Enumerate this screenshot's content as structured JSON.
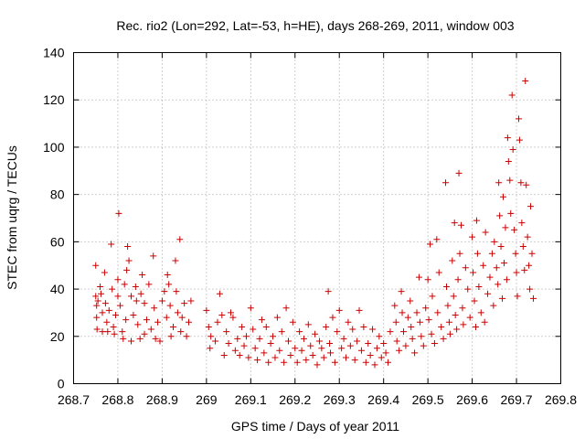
{
  "chart_data": {
    "type": "scatter",
    "title": "Rec. rio2 (Lon=292, Lat=-53, h=HE), days 268-269, 2011, window 003",
    "xlabel": "GPS time / Days of year 2011",
    "ylabel": "STEC from uqrg / TECUs",
    "xlim": [
      268.7,
      269.8
    ],
    "ylim": [
      0,
      140
    ],
    "xticks": [
      "268.7",
      "268.8",
      "268.9",
      "269",
      "269.1",
      "269.2",
      "269.3",
      "269.4",
      "269.5",
      "269.6",
      "269.7",
      "269.8"
    ],
    "yticks": [
      "0",
      "20",
      "40",
      "60",
      "80",
      "100",
      "120",
      "140"
    ],
    "grid": true,
    "legend": "none",
    "marker": "plus",
    "color": "#cc0000",
    "series": [
      {
        "points": [
          [
            268.75,
            50
          ],
          [
            268.75,
            37
          ],
          [
            268.752,
            33
          ],
          [
            268.752,
            28
          ],
          [
            268.753,
            23
          ],
          [
            268.755,
            35
          ],
          [
            268.76,
            41
          ],
          [
            268.762,
            38
          ],
          [
            268.765,
            30
          ],
          [
            268.765,
            22
          ],
          [
            268.77,
            47
          ],
          [
            268.772,
            34
          ],
          [
            268.775,
            26
          ],
          [
            268.777,
            22
          ],
          [
            268.78,
            31
          ],
          [
            268.785,
            59
          ],
          [
            268.787,
            40
          ],
          [
            268.79,
            24
          ],
          [
            268.792,
            21
          ],
          [
            268.795,
            29
          ],
          [
            268.8,
            44
          ],
          [
            268.8,
            37
          ],
          [
            268.802,
            72
          ],
          [
            268.805,
            33
          ],
          [
            268.81,
            22
          ],
          [
            268.812,
            19
          ],
          [
            268.815,
            42
          ],
          [
            268.818,
            27
          ],
          [
            268.82,
            48
          ],
          [
            268.822,
            58
          ],
          [
            268.825,
            52
          ],
          [
            268.83,
            37
          ],
          [
            268.83,
            18
          ],
          [
            268.835,
            29
          ],
          [
            268.84,
            41
          ],
          [
            268.842,
            35
          ],
          [
            268.845,
            25
          ],
          [
            268.85,
            19
          ],
          [
            268.852,
            38
          ],
          [
            268.855,
            46
          ],
          [
            268.86,
            34
          ],
          [
            268.86,
            21
          ],
          [
            268.865,
            27
          ],
          [
            268.87,
            42
          ],
          [
            268.875,
            23
          ],
          [
            268.88,
            54
          ],
          [
            268.882,
            32
          ],
          [
            268.885,
            19
          ],
          [
            268.89,
            26
          ],
          [
            268.895,
            18
          ],
          [
            268.9,
            35
          ],
          [
            268.905,
            39
          ],
          [
            268.91,
            28
          ],
          [
            268.912,
            46
          ],
          [
            268.915,
            42
          ],
          [
            268.918,
            33
          ],
          [
            268.92,
            20
          ],
          [
            268.925,
            24
          ],
          [
            268.93,
            52
          ],
          [
            268.932,
            39
          ],
          [
            268.935,
            30
          ],
          [
            268.94,
            61
          ],
          [
            268.942,
            22
          ],
          [
            268.945,
            28
          ],
          [
            268.95,
            34
          ],
          [
            268.955,
            20
          ],
          [
            268.96,
            26
          ],
          [
            268.965,
            35
          ],
          [
            269.0,
            31
          ],
          [
            269.005,
            24
          ],
          [
            269.008,
            15
          ],
          [
            269.01,
            20
          ],
          [
            269.02,
            18
          ],
          [
            269.025,
            26
          ],
          [
            269.03,
            38
          ],
          [
            269.035,
            29
          ],
          [
            269.04,
            12
          ],
          [
            269.045,
            22
          ],
          [
            269.05,
            17
          ],
          [
            269.055,
            30
          ],
          [
            269.06,
            28
          ],
          [
            269.065,
            14
          ],
          [
            269.07,
            19
          ],
          [
            269.075,
            12
          ],
          [
            269.08,
            24
          ],
          [
            269.085,
            16
          ],
          [
            269.09,
            20
          ],
          [
            269.095,
            11
          ],
          [
            269.1,
            32
          ],
          [
            269.105,
            23
          ],
          [
            269.11,
            15
          ],
          [
            269.115,
            10
          ],
          [
            269.12,
            19
          ],
          [
            269.125,
            27
          ],
          [
            269.13,
            13
          ],
          [
            269.135,
            24
          ],
          [
            269.14,
            9
          ],
          [
            269.145,
            17
          ],
          [
            269.15,
            20
          ],
          [
            269.155,
            11
          ],
          [
            269.16,
            28
          ],
          [
            269.165,
            14
          ],
          [
            269.17,
            22
          ],
          [
            269.175,
            9
          ],
          [
            269.18,
            32
          ],
          [
            269.185,
            18
          ],
          [
            269.19,
            12
          ],
          [
            269.195,
            26
          ],
          [
            269.2,
            15
          ],
          [
            269.205,
            9
          ],
          [
            269.21,
            22
          ],
          [
            269.215,
            14
          ],
          [
            269.22,
            19
          ],
          [
            269.225,
            10
          ],
          [
            269.23,
            25
          ],
          [
            269.235,
            16
          ],
          [
            269.24,
            12
          ],
          [
            269.245,
            21
          ],
          [
            269.25,
            8
          ],
          [
            269.255,
            18
          ],
          [
            269.26,
            15
          ],
          [
            269.265,
            11
          ],
          [
            269.27,
            24
          ],
          [
            269.275,
            39
          ],
          [
            269.278,
            17
          ],
          [
            269.28,
            13
          ],
          [
            269.285,
            28
          ],
          [
            269.29,
            9
          ],
          [
            269.295,
            22
          ],
          [
            269.3,
            31
          ],
          [
            269.305,
            15
          ],
          [
            269.31,
            19
          ],
          [
            269.315,
            11
          ],
          [
            269.32,
            26
          ],
          [
            269.325,
            16
          ],
          [
            269.33,
            23
          ],
          [
            269.335,
            10
          ],
          [
            269.34,
            18
          ],
          [
            269.345,
            31
          ],
          [
            269.35,
            14
          ],
          [
            269.355,
            24
          ],
          [
            269.36,
            9
          ],
          [
            269.365,
            17
          ],
          [
            269.37,
            12
          ],
          [
            269.375,
            23
          ],
          [
            269.38,
            8
          ],
          [
            269.385,
            15
          ],
          [
            269.39,
            20
          ],
          [
            269.395,
            11
          ],
          [
            269.4,
            17
          ],
          [
            269.405,
            13
          ],
          [
            269.41,
            9
          ],
          [
            269.415,
            22
          ],
          [
            269.425,
            33
          ],
          [
            269.428,
            26
          ],
          [
            269.43,
            18
          ],
          [
            269.435,
            14
          ],
          [
            269.44,
            39
          ],
          [
            269.442,
            30
          ],
          [
            269.445,
            22
          ],
          [
            269.45,
            16
          ],
          [
            269.455,
            28
          ],
          [
            269.46,
            35
          ],
          [
            269.462,
            24
          ],
          [
            269.465,
            19
          ],
          [
            269.47,
            13
          ],
          [
            269.475,
            30
          ],
          [
            269.48,
            45
          ],
          [
            269.482,
            26
          ],
          [
            269.485,
            20
          ],
          [
            269.49,
            16
          ],
          [
            269.495,
            32
          ],
          [
            269.5,
            44
          ],
          [
            269.502,
            27
          ],
          [
            269.505,
            59
          ],
          [
            269.508,
            21
          ],
          [
            269.51,
            37
          ],
          [
            269.515,
            17
          ],
          [
            269.52,
            61
          ],
          [
            269.522,
            30
          ],
          [
            269.525,
            47
          ],
          [
            269.53,
            24
          ],
          [
            269.535,
            19
          ],
          [
            269.54,
            85
          ],
          [
            269.542,
            41
          ],
          [
            269.545,
            33
          ],
          [
            269.548,
            26
          ],
          [
            269.55,
            21
          ],
          [
            269.555,
            52
          ],
          [
            269.558,
            37
          ],
          [
            269.56,
            68
          ],
          [
            269.562,
            29
          ],
          [
            269.565,
            23
          ],
          [
            269.568,
            44
          ],
          [
            269.57,
            89
          ],
          [
            269.572,
            55
          ],
          [
            269.575,
            67
          ],
          [
            269.578,
            32
          ],
          [
            269.58,
            25
          ],
          [
            269.585,
            49
          ],
          [
            269.59,
            40
          ],
          [
            269.595,
            28
          ],
          [
            269.6,
            62
          ],
          [
            269.602,
            47
          ],
          [
            269.605,
            35
          ],
          [
            269.608,
            24
          ],
          [
            269.61,
            69
          ],
          [
            269.612,
            55
          ],
          [
            269.615,
            41
          ],
          [
            269.62,
            30
          ],
          [
            269.625,
            50
          ],
          [
            269.628,
            26
          ],
          [
            269.63,
            64
          ],
          [
            269.635,
            38
          ],
          [
            269.64,
            45
          ],
          [
            269.645,
            55
          ],
          [
            269.648,
            33
          ],
          [
            269.65,
            60
          ],
          [
            269.655,
            49
          ],
          [
            269.658,
            42
          ],
          [
            269.66,
            85
          ],
          [
            269.662,
            71
          ],
          [
            269.665,
            58
          ],
          [
            269.668,
            36
          ],
          [
            269.67,
            79
          ],
          [
            269.672,
            51
          ],
          [
            269.675,
            66
          ],
          [
            269.678,
            44
          ],
          [
            269.68,
            104
          ],
          [
            269.682,
            94
          ],
          [
            269.685,
            86
          ],
          [
            269.687,
            72
          ],
          [
            269.69,
            122
          ],
          [
            269.692,
            99
          ],
          [
            269.695,
            65
          ],
          [
            269.698,
            55
          ],
          [
            269.7,
            47
          ],
          [
            269.702,
            37
          ],
          [
            269.705,
            112
          ],
          [
            269.707,
            103
          ],
          [
            269.71,
            85
          ],
          [
            269.712,
            68
          ],
          [
            269.715,
            58
          ],
          [
            269.718,
            48
          ],
          [
            269.72,
            128
          ],
          [
            269.722,
            84
          ],
          [
            269.725,
            62
          ],
          [
            269.728,
            50
          ],
          [
            269.73,
            40
          ],
          [
            269.732,
            75
          ],
          [
            269.735,
            55
          ],
          [
            269.738,
            36
          ]
        ]
      }
    ]
  }
}
